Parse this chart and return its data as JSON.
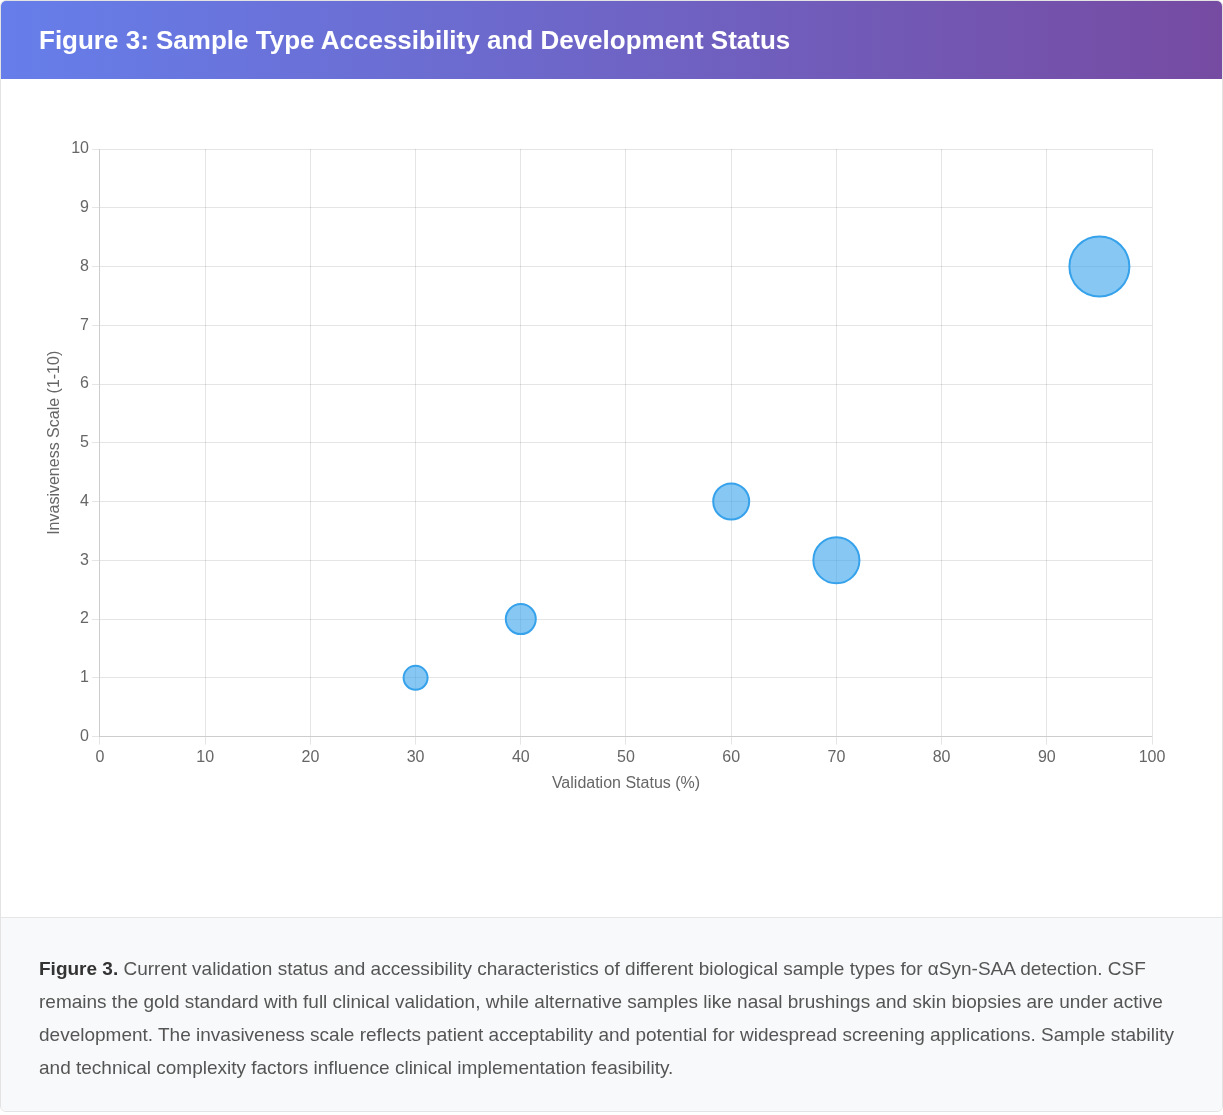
{
  "chart_data": {
    "type": "bubble",
    "title": "Figure 3: Sample Type Accessibility and Development Status",
    "xlabel": "Validation Status (%)",
    "ylabel": "Invasiveness Scale (1-10)",
    "x": [
      30,
      40,
      60,
      70,
      95
    ],
    "values": [
      1,
      2,
      4,
      3,
      8
    ],
    "sizes": [
      0.16,
      0.25,
      0.36,
      0.59,
      1
    ],
    "color": "#36a2eb",
    "xlim": [
      0,
      100
    ],
    "xticks": [
      0,
      10,
      20,
      30,
      40,
      50,
      60,
      70,
      80,
      90,
      100
    ],
    "ylim": [
      0,
      10
    ],
    "yticks": [
      0,
      1,
      2,
      3,
      4,
      5,
      6,
      7,
      8,
      9,
      10
    ],
    "grid": true,
    "legend": false,
    "marker": "circle",
    "annotations": [
      "Figure 3.",
      "Current validation status and accessibility characteristics of different biological sample types for αSyn-SAA detection. CSF remains the gold standard with full clinical validation, while alternative samples like nasal brushings and skin biopsies are under active development. The invasiveness scale reflects patient acceptability and potential for widespread screening applications. Sample stability and technical complexity factors influence clinical implementation feasibility."
    ]
  }
}
